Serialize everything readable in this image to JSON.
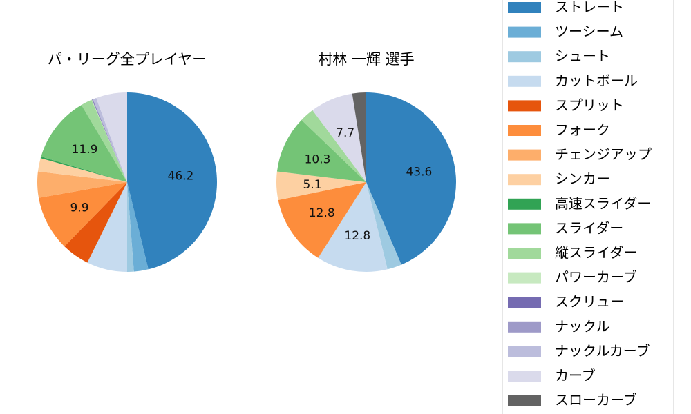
{
  "chart_data": [
    {
      "type": "pie",
      "title": "パ・リーグ全プレイヤー",
      "slices": [
        {
          "name": "ストレート",
          "value": 46.2,
          "label": "46.2",
          "color": "#3182bd"
        },
        {
          "name": "ツーシーム",
          "value": 2.6,
          "label": "",
          "color": "#6baed6"
        },
        {
          "name": "シュート",
          "value": 1.2,
          "label": "",
          "color": "#9ecae1"
        },
        {
          "name": "カットボール",
          "value": 7.3,
          "label": "",
          "color": "#c6dbef"
        },
        {
          "name": "スプリット",
          "value": 5.0,
          "label": "",
          "color": "#e6550d"
        },
        {
          "name": "フォーク",
          "value": 9.9,
          "label": "9.9",
          "color": "#fd8d3c"
        },
        {
          "name": "チェンジアップ",
          "value": 4.7,
          "label": "",
          "color": "#fdae6b"
        },
        {
          "name": "シンカー",
          "value": 2.4,
          "label": "",
          "color": "#fdd0a2"
        },
        {
          "name": "高速スライダー",
          "value": 0.3,
          "label": "",
          "color": "#31a354"
        },
        {
          "name": "スライダー",
          "value": 11.9,
          "label": "11.9",
          "color": "#74c476"
        },
        {
          "name": "縦スライダー",
          "value": 2.0,
          "label": "",
          "color": "#a1d99b"
        },
        {
          "name": "パワーカーブ",
          "value": 0.1,
          "label": "",
          "color": "#c7e9c0"
        },
        {
          "name": "スクリュー",
          "value": 0.1,
          "label": "",
          "color": "#756bb1"
        },
        {
          "name": "ナックル",
          "value": 0.1,
          "label": "",
          "color": "#9e9ac8"
        },
        {
          "name": "ナックルカーブ",
          "value": 0.6,
          "label": "",
          "color": "#bcbddc"
        },
        {
          "name": "カーブ",
          "value": 5.6,
          "label": "",
          "color": "#dadaeb"
        },
        {
          "name": "スローカーブ",
          "value": 0.0,
          "label": "",
          "color": "#636363"
        }
      ]
    },
    {
      "type": "pie",
      "title": "村林 一輝  選手",
      "slices": [
        {
          "name": "ストレート",
          "value": 43.6,
          "label": "43.6",
          "color": "#3182bd"
        },
        {
          "name": "シュート",
          "value": 2.6,
          "label": "",
          "color": "#9ecae1"
        },
        {
          "name": "カットボール",
          "value": 12.8,
          "label": "12.8",
          "color": "#c6dbef"
        },
        {
          "name": "フォーク",
          "value": 12.8,
          "label": "12.8",
          "color": "#fd8d3c"
        },
        {
          "name": "シンカー",
          "value": 5.1,
          "label": "5.1",
          "color": "#fdd0a2"
        },
        {
          "name": "スライダー",
          "value": 10.3,
          "label": "10.3",
          "color": "#74c476"
        },
        {
          "name": "縦スライダー",
          "value": 2.6,
          "label": "",
          "color": "#a1d99b"
        },
        {
          "name": "カーブ",
          "value": 7.7,
          "label": "7.7",
          "color": "#dadaeb"
        },
        {
          "name": "スローカーブ",
          "value": 2.5,
          "label": "",
          "color": "#636363"
        }
      ]
    }
  ],
  "legend": [
    {
      "name": "ストレート",
      "color": "#3182bd"
    },
    {
      "name": "ツーシーム",
      "color": "#6baed6"
    },
    {
      "name": "シュート",
      "color": "#9ecae1"
    },
    {
      "name": "カットボール",
      "color": "#c6dbef"
    },
    {
      "name": "スプリット",
      "color": "#e6550d"
    },
    {
      "name": "フォーク",
      "color": "#fd8d3c"
    },
    {
      "name": "チェンジアップ",
      "color": "#fdae6b"
    },
    {
      "name": "シンカー",
      "color": "#fdd0a2"
    },
    {
      "name": "高速スライダー",
      "color": "#31a354"
    },
    {
      "name": "スライダー",
      "color": "#74c476"
    },
    {
      "name": "縦スライダー",
      "color": "#a1d99b"
    },
    {
      "name": "パワーカーブ",
      "color": "#c7e9c0"
    },
    {
      "name": "スクリュー",
      "color": "#756bb1"
    },
    {
      "name": "ナックル",
      "color": "#9e9ac8"
    },
    {
      "name": "ナックルカーブ",
      "color": "#bcbddc"
    },
    {
      "name": "カーブ",
      "color": "#dadaeb"
    },
    {
      "name": "スローカーブ",
      "color": "#636363"
    }
  ]
}
